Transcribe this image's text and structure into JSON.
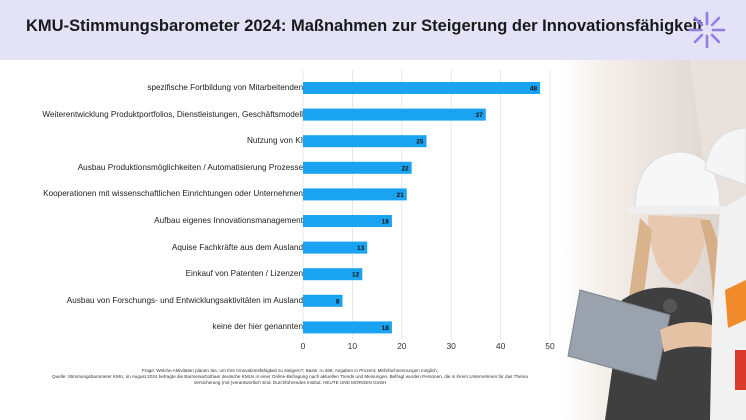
{
  "header": {
    "title": "KMU-Stimmungsbarometer 2024: Maßnahmen zur Steigerung der Innovationsfähigkeit",
    "logo_icon": "asterisk-burst-icon"
  },
  "colors": {
    "bar": "#1aa3f0",
    "header_bg": "#e4e2f7",
    "logo": "#8c80e6"
  },
  "chart_data": {
    "type": "bar",
    "orientation": "horizontal",
    "categories": [
      "spezifische Fortbildung von Mitarbeitenden",
      "Weiterentwicklung Produktportfolios, Dienstleistungen, Geschäftsmodell",
      "Nutzung von KI",
      "Ausbau Produktionsmöglichkeiten / Automatisierung Prozesse",
      "Kooperationen mit wissenschaftlichen Einrichtungen oder Unternehmen",
      "Aufbau eigenes Innovationsmanagement",
      "Aquise Fachkräfte aus dem Ausland",
      "Einkauf von Patenten / Lizenzen",
      "Ausbau von Forschungs- und Entwicklungsaktivitäten im Ausland",
      "keine der hier genannten"
    ],
    "values": [
      48,
      37,
      25,
      22,
      21,
      18,
      13,
      12,
      8,
      18
    ],
    "xlim": [
      0,
      50
    ],
    "xticks": [
      0,
      10,
      20,
      30,
      40,
      50
    ],
    "grid": true,
    "data_labels": true
  },
  "footnote": {
    "line1": "Frage: Welche Aktivitäten planen Sie, um Ihre Innovationsfähigkeit zu steigern?; Basis: n=496; Angaben in Prozent; Mehrfachnennungen möglich;",
    "line2": "Quelle: Stimmungsbarometer KMU, im August 2024 befragte die BarmeniaGothaer deutsche KMUs in einer Online-Befragung nach aktuellen Trends und Meinungen. Befragt wurden Personen, die in ihrem Unternehmen für das Thema Versicherung (mit-)verantwortlich sind. Durchführendes Institut: HEUTE UND MORGEN GmbH"
  }
}
